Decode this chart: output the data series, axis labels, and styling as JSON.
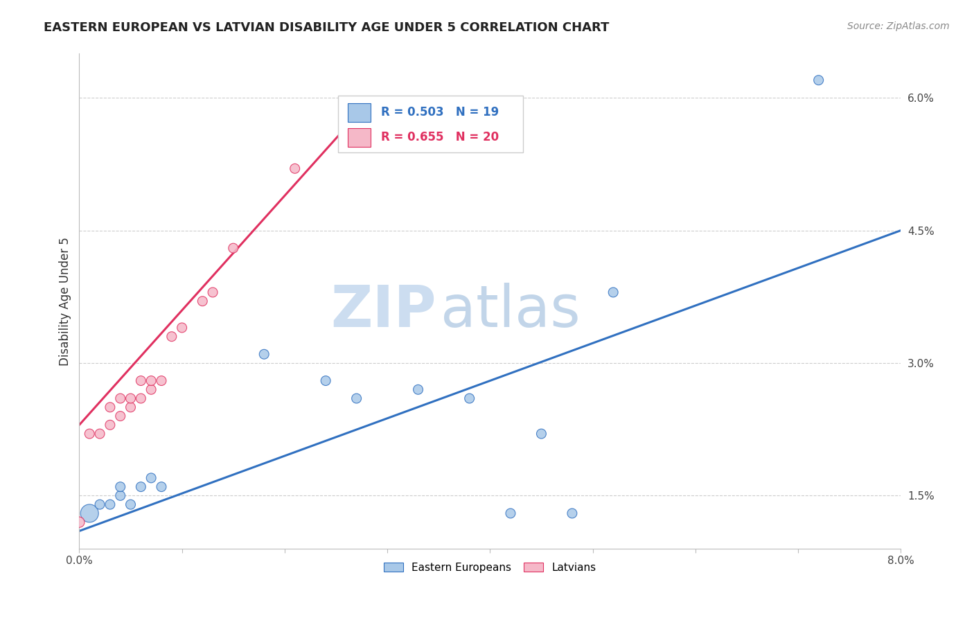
{
  "title": "EASTERN EUROPEAN VS LATVIAN DISABILITY AGE UNDER 5 CORRELATION CHART",
  "source": "Source: ZipAtlas.com",
  "ylabel": "Disability Age Under 5",
  "xlim": [
    0.0,
    0.08
  ],
  "ylim": [
    0.009,
    0.065
  ],
  "ytick_positions": [
    0.015,
    0.03,
    0.045,
    0.06
  ],
  "ytick_labels": [
    "1.5%",
    "3.0%",
    "4.5%",
    "6.0%"
  ],
  "blue_r": 0.503,
  "blue_n": 19,
  "pink_r": 0.655,
  "pink_n": 20,
  "blue_color": "#a8c8e8",
  "pink_color": "#f5b8c8",
  "blue_line_color": "#3070c0",
  "pink_line_color": "#e03060",
  "legend_labels": [
    "Eastern Europeans",
    "Latvians"
  ],
  "blue_points": [
    [
      0.001,
      0.013
    ],
    [
      0.002,
      0.014
    ],
    [
      0.003,
      0.014
    ],
    [
      0.004,
      0.015
    ],
    [
      0.004,
      0.016
    ],
    [
      0.005,
      0.014
    ],
    [
      0.006,
      0.016
    ],
    [
      0.007,
      0.017
    ],
    [
      0.008,
      0.016
    ],
    [
      0.018,
      0.031
    ],
    [
      0.024,
      0.028
    ],
    [
      0.027,
      0.026
    ],
    [
      0.033,
      0.027
    ],
    [
      0.038,
      0.026
    ],
    [
      0.042,
      0.013
    ],
    [
      0.045,
      0.022
    ],
    [
      0.048,
      0.013
    ],
    [
      0.052,
      0.038
    ],
    [
      0.072,
      0.062
    ]
  ],
  "blue_sizes": [
    350,
    100,
    100,
    100,
    100,
    100,
    100,
    100,
    100,
    100,
    100,
    100,
    100,
    100,
    100,
    100,
    100,
    100,
    100
  ],
  "pink_points": [
    [
      0.0,
      0.012
    ],
    [
      0.001,
      0.022
    ],
    [
      0.002,
      0.022
    ],
    [
      0.003,
      0.023
    ],
    [
      0.003,
      0.025
    ],
    [
      0.004,
      0.024
    ],
    [
      0.004,
      0.026
    ],
    [
      0.005,
      0.025
    ],
    [
      0.005,
      0.026
    ],
    [
      0.006,
      0.026
    ],
    [
      0.006,
      0.028
    ],
    [
      0.007,
      0.027
    ],
    [
      0.007,
      0.028
    ],
    [
      0.008,
      0.028
    ],
    [
      0.009,
      0.033
    ],
    [
      0.01,
      0.034
    ],
    [
      0.012,
      0.037
    ],
    [
      0.013,
      0.038
    ],
    [
      0.015,
      0.043
    ],
    [
      0.021,
      0.052
    ]
  ],
  "pink_sizes": [
    120,
    100,
    100,
    100,
    100,
    100,
    100,
    100,
    100,
    100,
    100,
    100,
    100,
    100,
    100,
    100,
    100,
    100,
    100,
    100
  ],
  "blue_line_x": [
    0.0,
    0.08
  ],
  "blue_line_y": [
    0.011,
    0.045
  ],
  "pink_line_x": [
    0.0,
    0.027
  ],
  "pink_line_y": [
    0.023,
    0.058
  ]
}
